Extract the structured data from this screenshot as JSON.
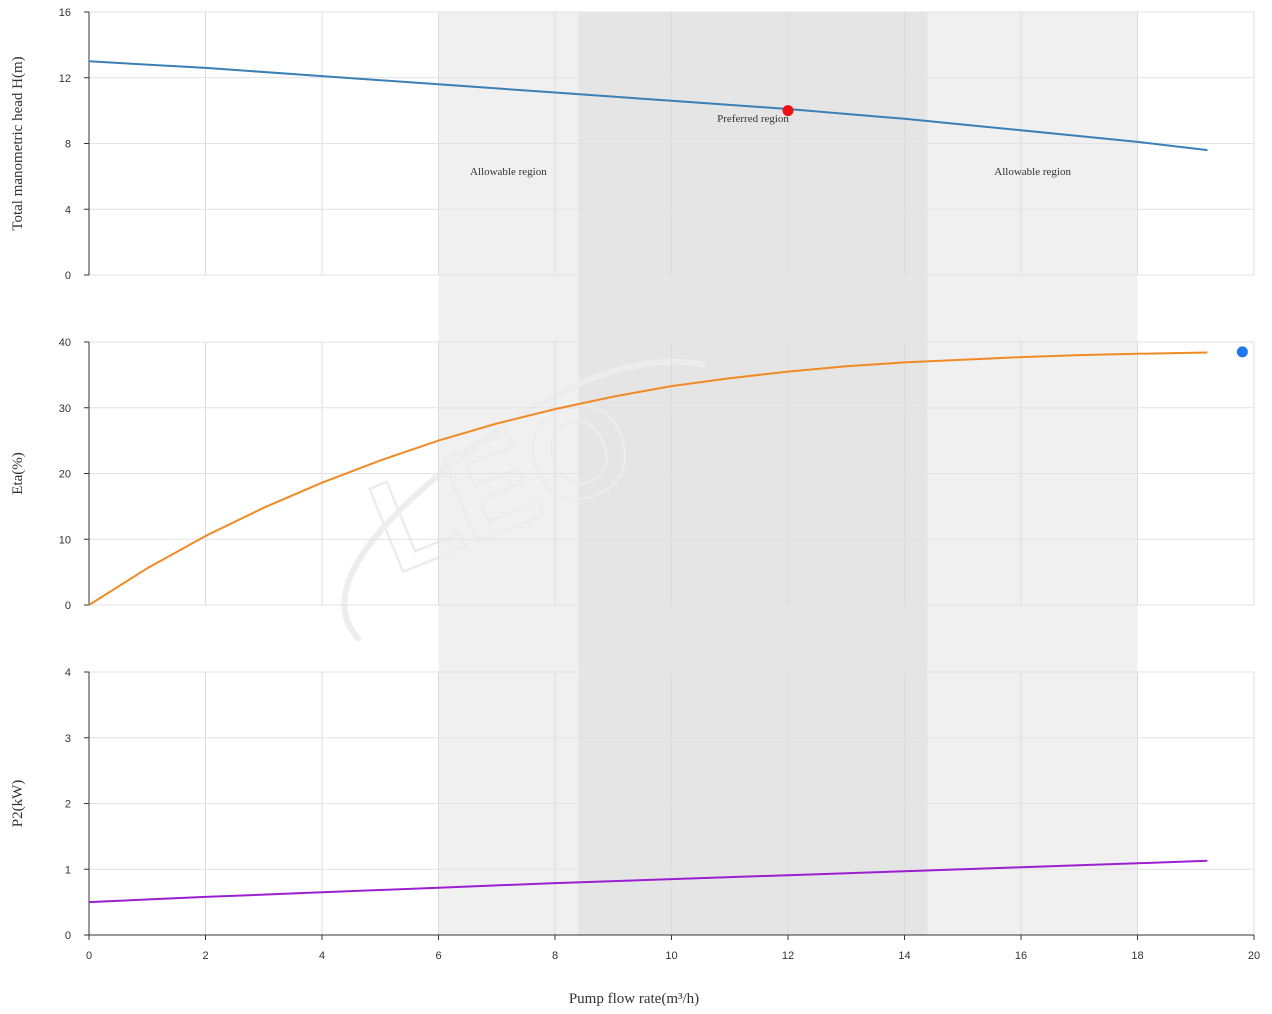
{
  "chart_data": {
    "type": "line",
    "watermark": "LEO",
    "x_axis": {
      "label": "Pump flow rate(m³/h)",
      "range": [
        0,
        20
      ],
      "ticks": [
        0,
        2,
        4,
        6,
        8,
        10,
        12,
        14,
        16,
        18,
        20
      ]
    },
    "regions": [
      {
        "name": "allowable-left",
        "label": "Allowable region",
        "x_range": [
          6,
          8.4
        ],
        "color": "#f0f0f0"
      },
      {
        "name": "preferred",
        "label": "Preferred region",
        "x_range": [
          8.4,
          14.4
        ],
        "color": "#e5e5e5"
      },
      {
        "name": "allowable-right",
        "label": "Allowable region",
        "x_range": [
          14.4,
          18
        ],
        "color": "#f0f0f0"
      }
    ],
    "panels": [
      {
        "name": "head",
        "ylabel": "Total manometric head H(m)",
        "ylim": [
          0,
          16
        ],
        "yticks": [
          0,
          4,
          8,
          12,
          16
        ],
        "series": [
          {
            "color": "#3a7fb5",
            "x": [
              0,
              2,
              4,
              6,
              8,
              10,
              12,
              14,
              16,
              18,
              19.2
            ],
            "y": [
              13.0,
              12.6,
              12.1,
              11.6,
              11.1,
              10.6,
              10.1,
              9.5,
              8.8,
              8.1,
              7.6
            ]
          }
        ],
        "marker": {
          "x": 12,
          "y": 10,
          "color": "#ee1111"
        }
      },
      {
        "name": "efficiency",
        "ylabel": "Eta(%)",
        "ylim": [
          0,
          40
        ],
        "yticks": [
          0,
          10,
          20,
          30,
          40
        ],
        "series": [
          {
            "color": "#f08a24",
            "x": [
              0,
              1,
              2,
              3,
              4,
              5,
              6,
              7,
              8,
              9,
              10,
              11,
              12,
              13,
              14,
              15,
              16,
              17,
              18,
              19.2
            ],
            "y": [
              0,
              5.6,
              10.5,
              14.8,
              18.6,
              22.0,
              25.0,
              27.6,
              29.8,
              31.7,
              33.3,
              34.5,
              35.5,
              36.3,
              36.9,
              37.3,
              37.7,
              38.0,
              38.2,
              38.4
            ]
          }
        ],
        "marker": {
          "x": 19.8,
          "y": 38.5,
          "color": "#1f77ee"
        }
      },
      {
        "name": "power",
        "ylabel": "P2(kW)",
        "ylim": [
          0,
          4
        ],
        "yticks": [
          0,
          1,
          2,
          3,
          4
        ],
        "series": [
          {
            "color": "#9b1fd1",
            "x": [
              0,
              2,
              4,
              6,
              8,
              10,
              12,
              14,
              16,
              18,
              19.2
            ],
            "y": [
              0.5,
              0.58,
              0.65,
              0.72,
              0.79,
              0.85,
              0.91,
              0.97,
              1.03,
              1.09,
              1.13
            ]
          }
        ]
      }
    ]
  }
}
